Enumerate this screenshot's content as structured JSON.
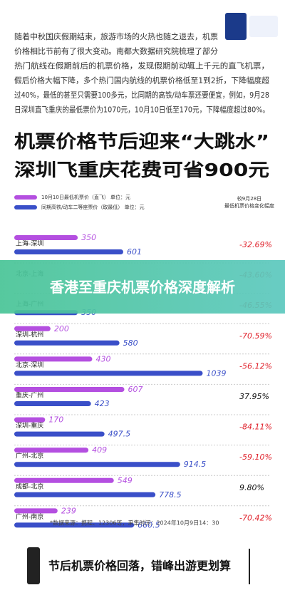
{
  "header": {
    "paragraph": [
      "随着中秋国庆假期结束，旅游市场的火热也随之退去，机票",
      "价格相比节前有了很大变动。南都大数据研究院梳理了部分",
      "热门航线在假期前后的机票价格，发现假期前动辄上千元的直飞机票，",
      "假后价格大幅下降，多个热门国内航线的机票价格低至1到2折，下降幅度超",
      "过40%，最低的甚至只需要100多元，比同期的高铁/动车票还要便宜，例如，9月28",
      "日深圳直飞重庆的最低票价为1070元，10月10日低至170元，下降幅度超过80%。"
    ],
    "title": [
      "机票价格节后迎来“大跳水”",
      "深圳飞重庆花费可省900元"
    ]
  },
  "banner": "香港至重庆机票价格深度解析",
  "chart_data": {
    "type": "bar",
    "orientation": "horizontal",
    "categories": [
      "上海-深圳",
      "北京-上海",
      "上海-广州",
      "深圳-杭州",
      "北京-深圳",
      "重庆-广州",
      "深圳-重庆",
      "广州-北京",
      "成都-北京",
      "广州-南京"
    ],
    "series": [
      {
        "name": "10月10日最低机票价（直飞） 单位：元",
        "color": "#b44fe0",
        "values": [
          350,
          null,
          null,
          200,
          430,
          607,
          170,
          409,
          549,
          239
        ]
      },
      {
        "name": "同期高铁/动车二等座票价（取最低） 单位：元",
        "color": "#3a4fc8",
        "values": [
          601,
          null,
          350,
          580,
          1039,
          423,
          497.5,
          914.5,
          778.5,
          660.5
        ]
      }
    ],
    "change_header": [
      "较9月28日",
      "最低机票价格变化幅度"
    ],
    "change": {
      "values": [
        -32.69,
        -43.6,
        -46.55,
        -70.59,
        -56.12,
        37.95,
        -84.11,
        -59.1,
        9.8,
        -70.42
      ],
      "value_labels": [
        "-32.69%",
        "-43.60%",
        "-46.55%",
        "-70.59%",
        "-56.12%",
        "37.95%",
        "-84.11%",
        "-59.10%",
        "9.80%",
        "-70.42%"
      ],
      "negative_color": "#e0202a",
      "positive_color": "#111111"
    },
    "xlim": [
      0,
      1100
    ],
    "source": "*数据来源：携程、12306等，采集时间：2024年10月9日14：30"
  },
  "footer": "节后机票价格回落，错峰出游更划算"
}
